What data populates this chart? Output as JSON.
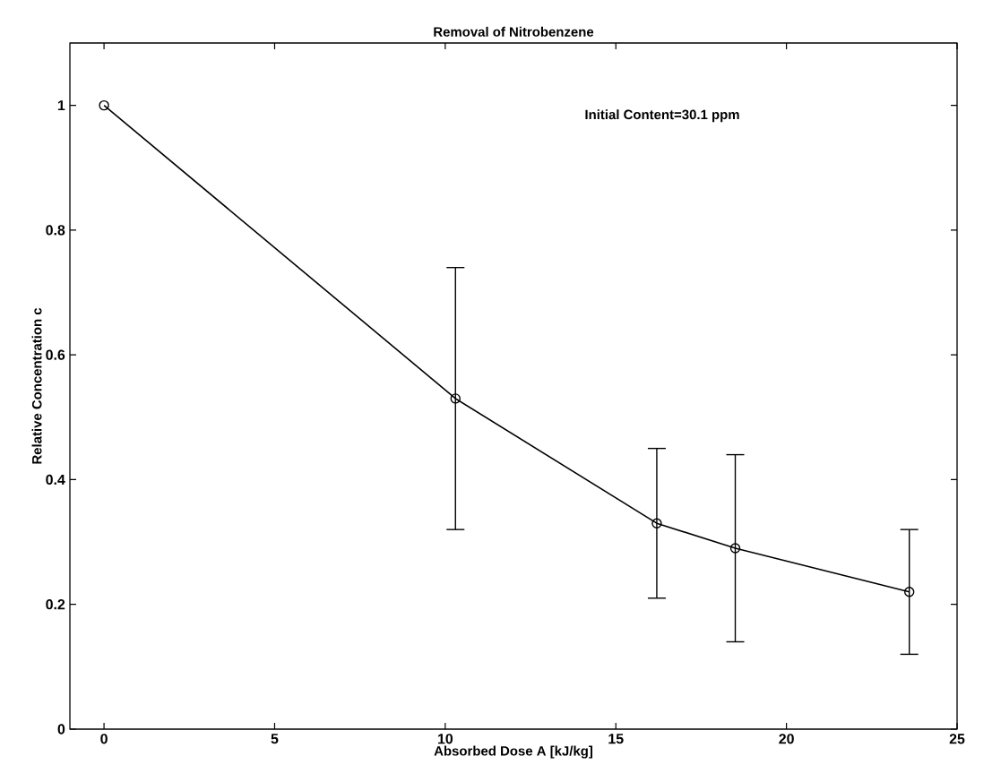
{
  "chart_data": {
    "type": "line",
    "title": "Removal of Nitrobenzene",
    "xlabel": "Absorbed Dose A [kJ/kg]",
    "ylabel": "Relative Concentration c",
    "annotations": [
      "Initial Content=30.1 ppm"
    ],
    "x": [
      0,
      10.3,
      16.2,
      18.5,
      23.6
    ],
    "values": [
      1.0,
      0.53,
      0.33,
      0.29,
      0.22
    ],
    "errors": [
      null,
      [
        0.32,
        0.74
      ],
      [
        0.21,
        0.45
      ],
      [
        0.14,
        0.44
      ],
      [
        0.12,
        0.32
      ]
    ],
    "color": "#000000",
    "marker": "circle",
    "line_style": "solid",
    "xlim": [
      -1,
      25
    ],
    "xticks": [
      0,
      5,
      10,
      15,
      20,
      25
    ],
    "ylim": [
      0,
      1.1
    ],
    "yticks": [
      0,
      0.2,
      0.4,
      0.6,
      0.8,
      1
    ]
  }
}
